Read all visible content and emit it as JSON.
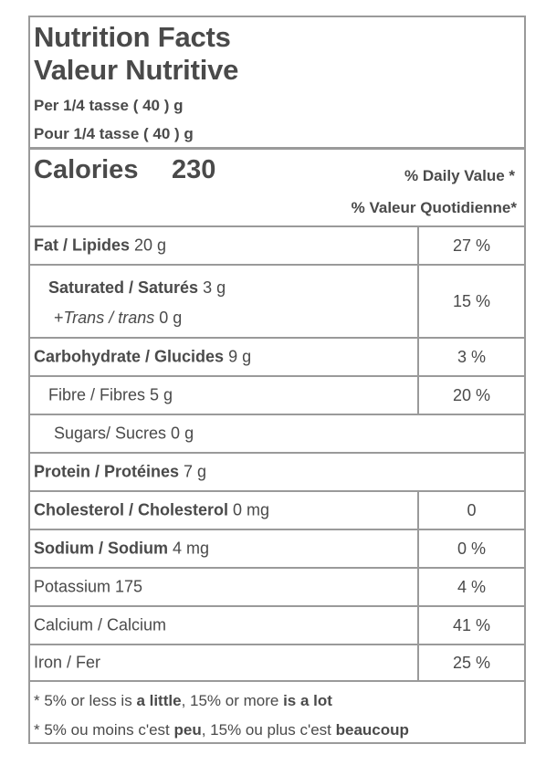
{
  "header": {
    "title_en": "Nutrition Facts",
    "title_fr": "Valeur Nutritive",
    "serving_en": "Per 1/4 tasse ( 40 ) g",
    "serving_fr": "Pour 1/4 tasse ( 40 ) g"
  },
  "calories": {
    "label": "Calories",
    "value": "230",
    "daily_value_en": "% Daily Value *",
    "daily_value_fr": "% Valeur Quotidienne*"
  },
  "nutrients": {
    "fat": {
      "label": "Fat / Lipides",
      "amount": " 20 g",
      "pct": "27 %"
    },
    "saturated": {
      "label": "Saturated / Saturés",
      "amount": " 3 g",
      "pct": "15 %"
    },
    "trans": {
      "prefix": "+",
      "label": "Trans / trans",
      "amount": " 0 g"
    },
    "carbohydrate": {
      "label": "Carbohydrate / Glucides",
      "amount": " 9 g",
      "pct": "3 %"
    },
    "fibre": {
      "label": "Fibre / Fibres 5 g",
      "pct": "20 %"
    },
    "sugars": {
      "label": "Sugars/ Sucres 0 g"
    },
    "protein": {
      "label": "Protein / Protéines",
      "amount": " 7 g"
    },
    "cholesterol": {
      "label": "Cholesterol / Cholesterol",
      "amount": " 0 mg",
      "pct": "0"
    },
    "sodium": {
      "label": "Sodium / Sodium",
      "amount": " 4 mg",
      "pct": "0 %"
    },
    "potassium": {
      "label": "Potassium 175",
      "pct": "4 %"
    },
    "calcium": {
      "label": "Calcium / Calcium",
      "pct": "41 %"
    },
    "iron": {
      "label": "Iron / Fer",
      "pct": "25 %"
    }
  },
  "footnote": {
    "en_a": "* 5% or less is ",
    "en_b": "a little",
    "en_c": ", 15% or more ",
    "en_d": "is a lot",
    "fr_a": "* 5% ou moins c'est ",
    "fr_b": "peu",
    "fr_c": ", 15% ou plus c'est ",
    "fr_d": "beaucoup"
  },
  "colors": {
    "text": "#4a4a4a",
    "border": "#9a9a9a",
    "background": "#ffffff"
  }
}
